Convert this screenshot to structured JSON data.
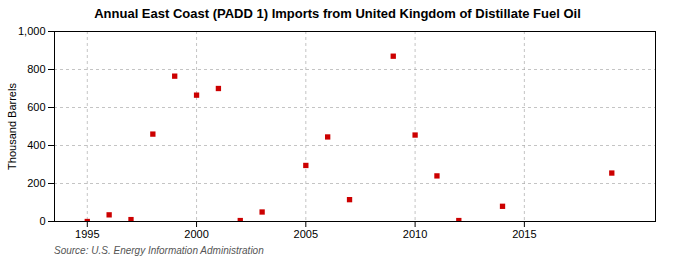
{
  "chart_data": {
    "type": "scatter",
    "title": "Annual East Coast (PADD 1) Imports from United Kingdom of Distillate Fuel Oil",
    "ylabel": "Thousand Barrels",
    "source": "Source: U.S. Energy Information Administration",
    "x": [
      1995,
      1996,
      1997,
      1998,
      1999,
      2000,
      2001,
      2002,
      2003,
      2005,
      2006,
      2007,
      2009,
      2010,
      2011,
      2012,
      2014,
      2019
    ],
    "values": [
      0,
      35,
      10,
      460,
      765,
      665,
      700,
      5,
      50,
      295,
      445,
      115,
      870,
      455,
      240,
      5,
      80,
      255
    ],
    "color": "#cc0000",
    "marker": "square",
    "xlim": [
      1993.5,
      2021
    ],
    "ylim": [
      0,
      1000
    ],
    "xticks": [
      1995,
      2000,
      2005,
      2010,
      2015
    ],
    "yticks": [
      0,
      200,
      400,
      600,
      800,
      {
        "value": 1000,
        "label": "1,000"
      }
    ],
    "grid": true
  }
}
